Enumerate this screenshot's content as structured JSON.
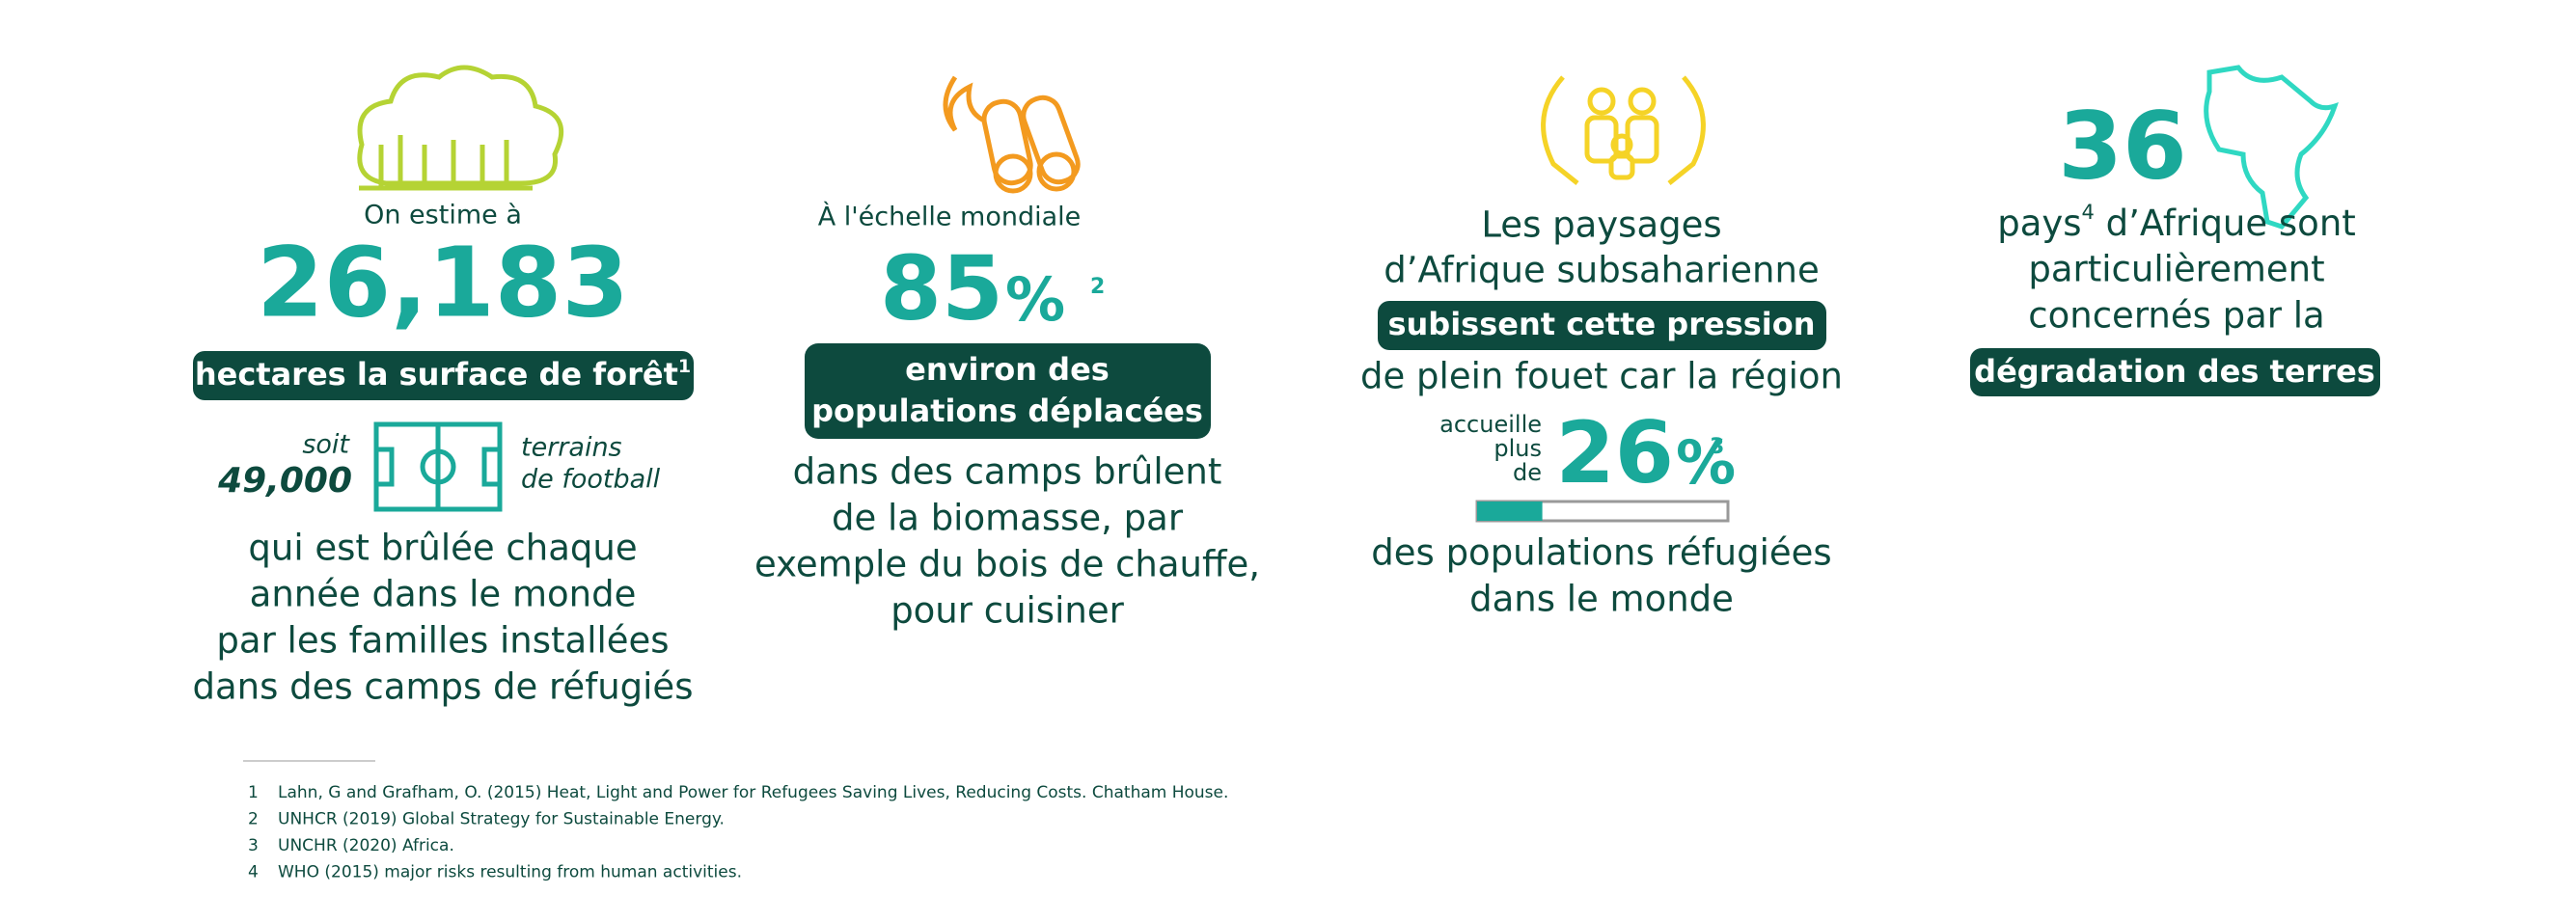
{
  "col1": {
    "intro": "On estime à",
    "figure": "26,183",
    "highlight": "hectares la surface de forêt",
    "note": "1",
    "equiv_prefix": "soit",
    "equiv_value": "49,000",
    "equiv_unit": [
      "terrains",
      "de football"
    ],
    "text": [
      "qui est brûlée chaque",
      "année dans le monde",
      "par les familles installées",
      "dans des camps de réfugiés"
    ]
  },
  "col2": {
    "intro": "À l'échelle mondiale",
    "figure": "85",
    "unit": "%",
    "note": "2",
    "highlight": [
      "environ des",
      "populations déplacées"
    ],
    "text": [
      "dans des camps brûlent",
      "de la biomasse, par",
      "exemple du bois de chauffe,",
      "pour cuisiner"
    ]
  },
  "col3": {
    "text_before": [
      "Les paysages",
      "d’Afrique subsaharienne"
    ],
    "highlight": "subissent cette pression",
    "text_middle": "de plein fouet car la région",
    "share": {
      "prefix": [
        "accueille",
        "plus",
        "de"
      ],
      "value": 26,
      "unit": "%",
      "note": "3"
    },
    "text_after": [
      "des populations réfugiées",
      "dans le monde"
    ]
  },
  "col4": {
    "figure": "36",
    "line1_word": "pays",
    "note": "4",
    "line1_rest": " d’Afrique sont",
    "text": [
      "particulièrement",
      "concernés par la"
    ],
    "highlight": "dégradation des terres"
  },
  "footnotes": [
    {
      "n": "1",
      "text": "Lahn, G and Grafham, O. (2015) Heat, Light and Power for Refugees Saving Lives, Reducing Costs. Chatham House."
    },
    {
      "n": "2",
      "text": "UNHCR (2019) Global Strategy for Sustainable Energy."
    },
    {
      "n": "3",
      "text": "UNCHR (2020) Africa."
    },
    {
      "n": "4",
      "text": "WHO (2015) major risks resulting from human activities."
    }
  ]
}
